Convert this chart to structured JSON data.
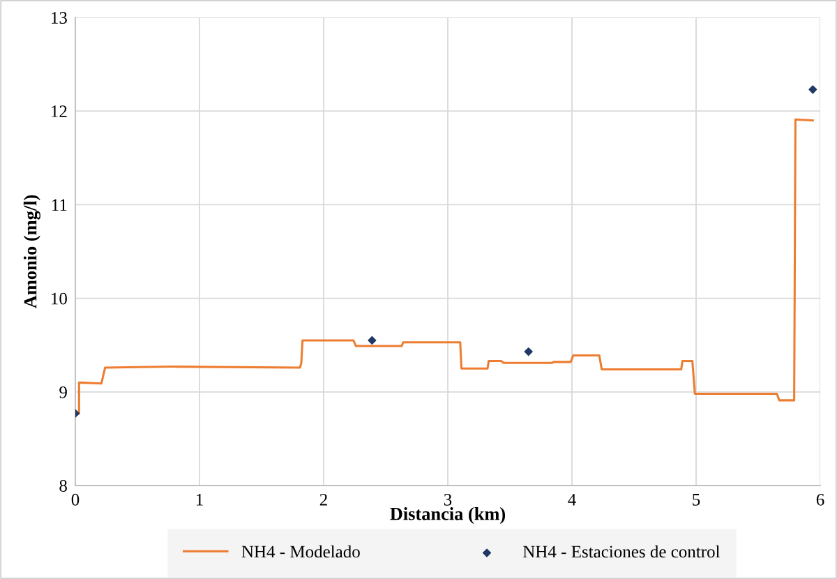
{
  "chart_data": {
    "type": "line",
    "xlabel": "Distancia (km)",
    "ylabel": "Amonio (mg/l)",
    "xlim": [
      0,
      6
    ],
    "xticks": [
      0,
      1,
      2,
      3,
      4,
      5,
      6
    ],
    "ylim": [
      8,
      13
    ],
    "yticks": [
      8,
      9,
      10,
      11,
      12,
      13
    ],
    "grid": true,
    "legend": "bottom",
    "series": [
      {
        "name": "NH4 - Modelado",
        "color": "#ed7d31",
        "marker": "none",
        "line_style": "solid",
        "x": [
          0,
          0.03,
          0.03,
          0.21,
          0.24,
          0.77,
          1.81,
          1.82,
          1.83,
          2.24,
          2.26,
          2.63,
          2.64,
          3.1,
          3.11,
          3.32,
          3.33,
          3.43,
          3.45,
          3.84,
          3.85,
          3.99,
          4.01,
          4.22,
          4.24,
          4.88,
          4.89,
          4.97,
          4.99,
          5.65,
          5.67,
          5.79,
          5.8,
          5.94
        ],
        "values": [
          8.77,
          8.77,
          9.1,
          9.09,
          9.26,
          9.27,
          9.26,
          9.31,
          9.55,
          9.55,
          9.49,
          9.49,
          9.53,
          9.53,
          9.25,
          9.25,
          9.33,
          9.33,
          9.31,
          9.31,
          9.32,
          9.32,
          9.39,
          9.39,
          9.24,
          9.24,
          9.33,
          9.33,
          8.98,
          8.98,
          8.91,
          8.91,
          11.91,
          11.9
        ]
      },
      {
        "name": "NH4 - Estaciones de control",
        "type": "scatter",
        "color": "#1f3864",
        "marker": "diamond",
        "x": [
          0,
          2.39,
          3.65,
          5.94
        ],
        "values": [
          8.77,
          9.55,
          9.43,
          12.23
        ]
      }
    ]
  }
}
